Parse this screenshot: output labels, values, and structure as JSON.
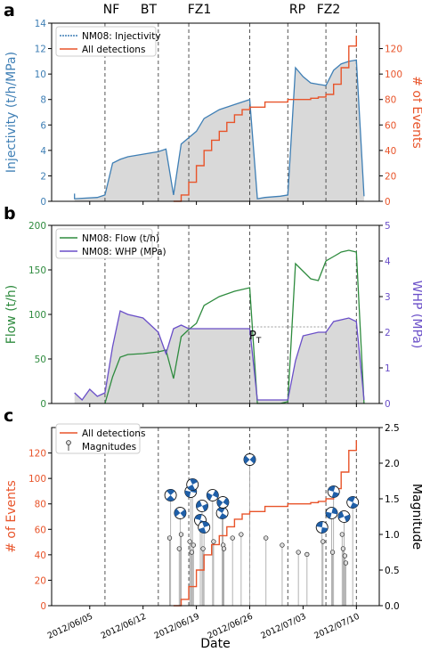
{
  "figure": {
    "panel_letters": [
      "a",
      "b",
      "c"
    ],
    "phase_labels": [
      "NF",
      "BT",
      "FZ1",
      "RP",
      "FZ2"
    ],
    "phase_boundaries": [
      "2012/06/07",
      "2012/06/14",
      "2012/06/18",
      "2012/06/26",
      "2012/07/01",
      "2012/07/06",
      "2012/07/10"
    ],
    "x_ticks": [
      "2012/06/05",
      "2012/06/12",
      "2012/06/19",
      "2012/06/26",
      "2012/07/03",
      "2012/07/10"
    ],
    "x_label": "Date",
    "pt_label": "P",
    "pt_sub": "T",
    "colors": {
      "blue": "#3f7fb5",
      "orange": "#e8542a",
      "green": "#2e8b3e",
      "purple": "#6a4fc8",
      "fill": "#d9d9d9",
      "stem": "#aaaaaa"
    }
  },
  "chart_data": [
    {
      "type": "line",
      "panel": "a",
      "ylabel_left": "Injectivity (t/h/MPa)",
      "ylabel_right": "# of Events",
      "ylim_left": [
        0,
        14
      ],
      "ylim_right": [
        0,
        140
      ],
      "yticks_left": [
        "0",
        "2",
        "4",
        "6",
        "8",
        "10",
        "12",
        "14"
      ],
      "yticks_right": [
        "0",
        "20",
        "40",
        "60",
        "80",
        "100",
        "120"
      ],
      "legend": [
        "NM08: Injectivity",
        "All detections"
      ],
      "series": [
        {
          "name": "NM08: Injectivity",
          "axis": "left",
          "color": "#3f7fb5",
          "x": [
            "2012/06/03",
            "2012/06/03",
            "2012/06/06",
            "2012/06/07",
            "2012/06/08",
            "2012/06/09",
            "2012/06/10",
            "2012/06/12",
            "2012/06/14",
            "2012/06/15",
            "2012/06/16",
            "2012/06/17",
            "2012/06/18",
            "2012/06/19",
            "2012/06/20",
            "2012/06/22",
            "2012/06/24",
            "2012/06/26",
            "2012/06/27",
            "2012/06/28",
            "2012/06/30",
            "2012/07/01",
            "2012/07/02",
            "2012/07/03",
            "2012/07/04",
            "2012/07/05",
            "2012/07/06",
            "2012/07/07",
            "2012/07/08",
            "2012/07/09",
            "2012/07/10",
            "2012/07/11"
          ],
          "y": [
            0.6,
            0.2,
            0.3,
            0.5,
            3.0,
            3.3,
            3.5,
            3.7,
            3.9,
            4.1,
            0.5,
            4.5,
            5.0,
            5.5,
            6.5,
            7.2,
            7.6,
            8.0,
            0.2,
            0.3,
            0.4,
            0.5,
            10.5,
            9.8,
            9.3,
            9.2,
            9.1,
            10.3,
            10.8,
            11.0,
            11.1,
            0.4
          ]
        },
        {
          "name": "All detections",
          "axis": "right",
          "color": "#e8542a",
          "x": [
            "2012/06/16",
            "2012/06/17",
            "2012/06/18",
            "2012/06/19",
            "2012/06/20",
            "2012/06/21",
            "2012/06/22",
            "2012/06/23",
            "2012/06/24",
            "2012/06/25",
            "2012/06/26",
            "2012/06/28",
            "2012/07/01",
            "2012/07/04",
            "2012/07/05",
            "2012/07/06",
            "2012/07/07",
            "2012/07/08",
            "2012/07/09",
            "2012/07/09",
            "2012/07/10"
          ],
          "y": [
            0,
            5,
            15,
            28,
            40,
            48,
            55,
            62,
            68,
            72,
            74,
            78,
            80,
            81,
            82,
            84,
            92,
            105,
            115,
            122,
            130
          ]
        }
      ]
    },
    {
      "type": "line",
      "panel": "b",
      "ylabel_left": "Flow (t/h)",
      "ylabel_right": "WHP (MPa)",
      "ylim_left": [
        0,
        200
      ],
      "ylim_right": [
        0,
        5
      ],
      "yticks_left": [
        "0",
        "50",
        "100",
        "150",
        "200"
      ],
      "yticks_right": [
        "0",
        "1",
        "2",
        "3",
        "4",
        "5"
      ],
      "legend": [
        "NM08: Flow (t/h)",
        "NM08: WHP (MPa)"
      ],
      "series": [
        {
          "name": "NM08: Flow (t/h)",
          "axis": "left",
          "color": "#2e8b3e",
          "x": [
            "2012/06/07",
            "2012/06/08",
            "2012/06/09",
            "2012/06/10",
            "2012/06/12",
            "2012/06/14",
            "2012/06/15",
            "2012/06/16",
            "2012/06/17",
            "2012/06/18",
            "2012/06/19",
            "2012/06/20",
            "2012/06/22",
            "2012/06/24",
            "2012/06/26",
            "2012/06/27",
            "2012/06/30",
            "2012/07/01",
            "2012/07/02",
            "2012/07/04",
            "2012/07/05",
            "2012/07/06",
            "2012/07/07",
            "2012/07/08",
            "2012/07/09",
            "2012/07/10",
            "2012/07/11"
          ],
          "y": [
            0,
            30,
            52,
            55,
            56,
            58,
            60,
            28,
            75,
            83,
            90,
            110,
            120,
            126,
            130,
            0,
            0,
            2,
            157,
            140,
            138,
            160,
            165,
            170,
            172,
            170,
            0
          ]
        },
        {
          "name": "NM08: WHP (MPa)",
          "axis": "right",
          "color": "#6a4fc8",
          "x": [
            "2012/06/03",
            "2012/06/04",
            "2012/06/05",
            "2012/06/06",
            "2012/06/07",
            "2012/06/08",
            "2012/06/09",
            "2012/06/10",
            "2012/06/12",
            "2012/06/14",
            "2012/06/15",
            "2012/06/16",
            "2012/06/17",
            "2012/06/18",
            "2012/06/20",
            "2012/06/22",
            "2012/06/24",
            "2012/06/26",
            "2012/06/27",
            "2012/06/30",
            "2012/07/01",
            "2012/07/02",
            "2012/07/03",
            "2012/07/05",
            "2012/07/06",
            "2012/07/07",
            "2012/07/09",
            "2012/07/10",
            "2012/07/11"
          ],
          "y": [
            0.3,
            0.1,
            0.4,
            0.2,
            0.3,
            1.6,
            2.6,
            2.5,
            2.4,
            2.0,
            1.4,
            2.1,
            2.2,
            2.1,
            2.1,
            2.1,
            2.1,
            2.1,
            0.1,
            0.1,
            0.1,
            1.2,
            1.9,
            2.0,
            2.0,
            2.3,
            2.4,
            2.3,
            0.1
          ]
        }
      ],
      "annotation": {
        "label": "P_T",
        "level_mpa": 2.15
      }
    },
    {
      "type": "scatter",
      "panel": "c",
      "ylabel_left": "# of Events",
      "ylabel_right": "Magnitude",
      "ylim_left": [
        0,
        140
      ],
      "ylim_right": [
        0,
        2.5
      ],
      "yticks_left": [
        "0",
        "20",
        "40",
        "60",
        "80",
        "100",
        "120"
      ],
      "yticks_right": [
        "0.0",
        "0.5",
        "1.0",
        "1.5",
        "2.0",
        "2.5"
      ],
      "legend": [
        "All detections",
        "Magnitudes"
      ],
      "series": [
        {
          "name": "All detections",
          "axis": "left",
          "color": "#e8542a",
          "x": [
            "2012/06/16",
            "2012/06/17",
            "2012/06/18",
            "2012/06/19",
            "2012/06/20",
            "2012/06/21",
            "2012/06/22",
            "2012/06/23",
            "2012/06/24",
            "2012/06/25",
            "2012/06/26",
            "2012/06/28",
            "2012/07/01",
            "2012/07/04",
            "2012/07/05",
            "2012/07/06",
            "2012/07/07",
            "2012/07/08",
            "2012/07/09",
            "2012/07/09",
            "2012/07/10"
          ],
          "y": [
            0,
            5,
            15,
            28,
            40,
            48,
            55,
            62,
            68,
            72,
            74,
            78,
            80,
            81,
            82,
            84,
            92,
            105,
            115,
            122,
            130
          ]
        },
        {
          "name": "Magnitudes",
          "axis": "right",
          "color": "#444444",
          "x": [
            "2012/06/16",
            "2012/06/16",
            "2012/06/17",
            "2012/06/17",
            "2012/06/17",
            "2012/06/18",
            "2012/06/18",
            "2012/06/18",
            "2012/06/19",
            "2012/06/19",
            "2012/06/19",
            "2012/06/20",
            "2012/06/20",
            "2012/06/20",
            "2012/06/21",
            "2012/06/21",
            "2012/06/22",
            "2012/06/22",
            "2012/06/23",
            "2012/06/23",
            "2012/06/24",
            "2012/06/25",
            "2012/06/26",
            "2012/06/28",
            "2012/06/30",
            "2012/07/02",
            "2012/07/03",
            "2012/07/06",
            "2012/07/06",
            "2012/07/07",
            "2012/07/07",
            "2012/07/07",
            "2012/07/08",
            "2012/07/08",
            "2012/07/08",
            "2012/07/09",
            "2012/07/09",
            "2012/07/09"
          ],
          "y": [
            0.95,
            1.55,
            0.8,
            1.3,
            1.0,
            0.9,
            1.6,
            0.75,
            1.2,
            1.7,
            0.85,
            1.4,
            0.8,
            1.1,
            1.55,
            0.9,
            1.3,
            0.85,
            1.45,
            0.8,
            0.95,
            1.0,
            2.05,
            0.95,
            0.85,
            0.75,
            0.72,
            1.1,
            0.9,
            1.3,
            0.75,
            1.6,
            1.0,
            0.8,
            1.25,
            1.45,
            0.7,
            0.6
          ]
        }
      ]
    }
  ]
}
